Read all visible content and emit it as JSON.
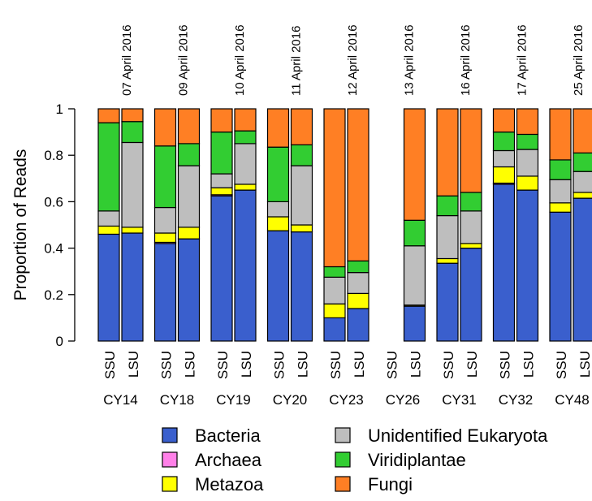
{
  "chart_data": {
    "type": "bar",
    "stacked": true,
    "ylabel": "Proportion of Reads",
    "ylim": [
      0,
      1
    ],
    "yticks": [
      "0",
      "0.2",
      "0.4",
      "0.6",
      "0.8",
      "1"
    ],
    "grid": false,
    "legend_position": "bottom",
    "series_order": [
      "Bacteria",
      "Archaea",
      "Metazoa",
      "Unidentified Eukaryota",
      "Viridiplantae",
      "Fungi"
    ],
    "legend_order": [
      "Bacteria",
      "Unidentified Eukaryota",
      "Archaea",
      "Viridiplantae",
      "Metazoa",
      "Fungi"
    ],
    "colors": {
      "Bacteria": "#3a5fcd",
      "Archaea": "#ff80e8",
      "Metazoa": "#ffff00",
      "Unidentified Eukaryota": "#bebebe",
      "Viridiplantae": "#32cd32",
      "Fungi": "#ff7f24"
    },
    "groups": [
      {
        "site": "CY14",
        "date": "07 April 2016",
        "bars": [
          {
            "label": "SSU",
            "values": [
              0.46,
              0.0,
              0.035,
              0.065,
              0.38,
              0.06
            ]
          },
          {
            "label": "LSU",
            "values": [
              0.465,
              0.0,
              0.025,
              0.365,
              0.09,
              0.055
            ]
          }
        ]
      },
      {
        "site": "CY18",
        "date": "09 April 2016",
        "bars": [
          {
            "label": "SSU",
            "values": [
              0.42,
              0.005,
              0.04,
              0.11,
              0.265,
              0.16
            ]
          },
          {
            "label": "LSU",
            "values": [
              0.44,
              0.0,
              0.05,
              0.265,
              0.095,
              0.15
            ]
          }
        ]
      },
      {
        "site": "CY19",
        "date": "10 April 2016",
        "bars": [
          {
            "label": "SSU",
            "values": [
              0.625,
              0.005,
              0.03,
              0.06,
              0.18,
              0.1
            ]
          },
          {
            "label": "LSU",
            "values": [
              0.65,
              0.0,
              0.025,
              0.175,
              0.055,
              0.095
            ]
          }
        ]
      },
      {
        "site": "CY20",
        "date": "11 April 2016",
        "bars": [
          {
            "label": "SSU",
            "values": [
              0.475,
              0.0,
              0.06,
              0.065,
              0.235,
              0.165
            ]
          },
          {
            "label": "LSU",
            "values": [
              0.47,
              0.0,
              0.03,
              0.255,
              0.09,
              0.155
            ]
          }
        ]
      },
      {
        "site": "CY23",
        "date": "12 April 2016",
        "bars": [
          {
            "label": "SSU",
            "values": [
              0.1,
              0.0,
              0.06,
              0.115,
              0.045,
              0.68
            ]
          },
          {
            "label": "LSU",
            "values": [
              0.14,
              0.0,
              0.065,
              0.09,
              0.05,
              0.655
            ]
          }
        ]
      },
      {
        "site": "CY26",
        "date": "13 April 2016",
        "bars": [
          {
            "label": "SSU",
            "values": [
              0,
              0,
              0,
              0,
              0,
              0
            ]
          },
          {
            "label": "LSU",
            "values": [
              0.15,
              0.0,
              0.005,
              0.255,
              0.11,
              0.48
            ]
          }
        ]
      },
      {
        "site": "CY31",
        "date": "16 April 2016",
        "bars": [
          {
            "label": "SSU",
            "values": [
              0.335,
              0.0,
              0.02,
              0.185,
              0.085,
              0.375
            ]
          },
          {
            "label": "LSU",
            "values": [
              0.4,
              0.0,
              0.02,
              0.14,
              0.08,
              0.36
            ]
          }
        ]
      },
      {
        "site": "CY32",
        "date": "17 April 2016",
        "bars": [
          {
            "label": "SSU",
            "values": [
              0.675,
              0.005,
              0.07,
              0.07,
              0.08,
              0.1
            ]
          },
          {
            "label": "LSU",
            "values": [
              0.65,
              0.0,
              0.06,
              0.115,
              0.065,
              0.11
            ]
          }
        ]
      },
      {
        "site": "CY48",
        "date": "25 April 2016",
        "bars": [
          {
            "label": "SSU",
            "values": [
              0.555,
              0.0,
              0.04,
              0.1,
              0.085,
              0.22
            ]
          },
          {
            "label": "LSU",
            "values": [
              0.615,
              0.0,
              0.025,
              0.09,
              0.08,
              0.19
            ]
          }
        ]
      }
    ]
  }
}
